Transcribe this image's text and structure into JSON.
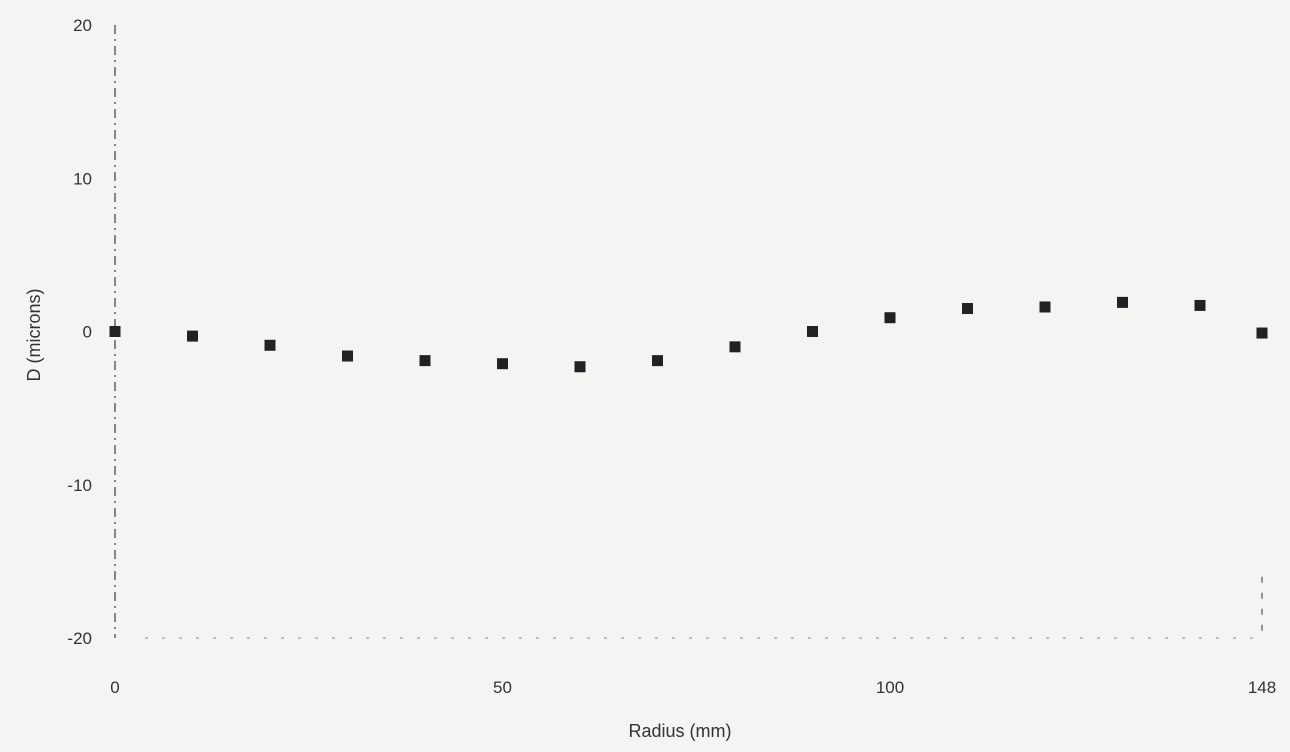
{
  "chart_data": {
    "type": "scatter",
    "title": "",
    "xlabel": "Radius (mm)",
    "ylabel": "D (microns)",
    "xlim": [
      0,
      148
    ],
    "ylim": [
      -20,
      20
    ],
    "x_ticks": [
      {
        "value": 0,
        "label": "0"
      },
      {
        "value": 50,
        "label": "50"
      },
      {
        "value": 100,
        "label": "100"
      },
      {
        "value": 148,
        "label": "148"
      }
    ],
    "y_ticks": [
      {
        "value": 20,
        "label": "20"
      },
      {
        "value": 10,
        "label": "10"
      },
      {
        "value": 0,
        "label": "0"
      },
      {
        "value": -10,
        "label": "-10"
      },
      {
        "value": -20,
        "label": "-20"
      }
    ],
    "grid": false,
    "legend": "none",
    "marker": "square",
    "marker_color": "#222222",
    "axis_color": "#555555",
    "series": [
      {
        "points": [
          {
            "x": 0,
            "y": 0.0
          },
          {
            "x": 10,
            "y": -0.3
          },
          {
            "x": 20,
            "y": -0.9
          },
          {
            "x": 30,
            "y": -1.6
          },
          {
            "x": 40,
            "y": -1.9
          },
          {
            "x": 50,
            "y": -2.1
          },
          {
            "x": 60,
            "y": -2.3
          },
          {
            "x": 70,
            "y": -1.9
          },
          {
            "x": 80,
            "y": -1.0
          },
          {
            "x": 90,
            "y": 0.0
          },
          {
            "x": 100,
            "y": 0.9
          },
          {
            "x": 110,
            "y": 1.5
          },
          {
            "x": 120,
            "y": 1.6
          },
          {
            "x": 130,
            "y": 1.9
          },
          {
            "x": 140,
            "y": 1.7
          },
          {
            "x": 148,
            "y": -0.1
          }
        ]
      }
    ]
  }
}
